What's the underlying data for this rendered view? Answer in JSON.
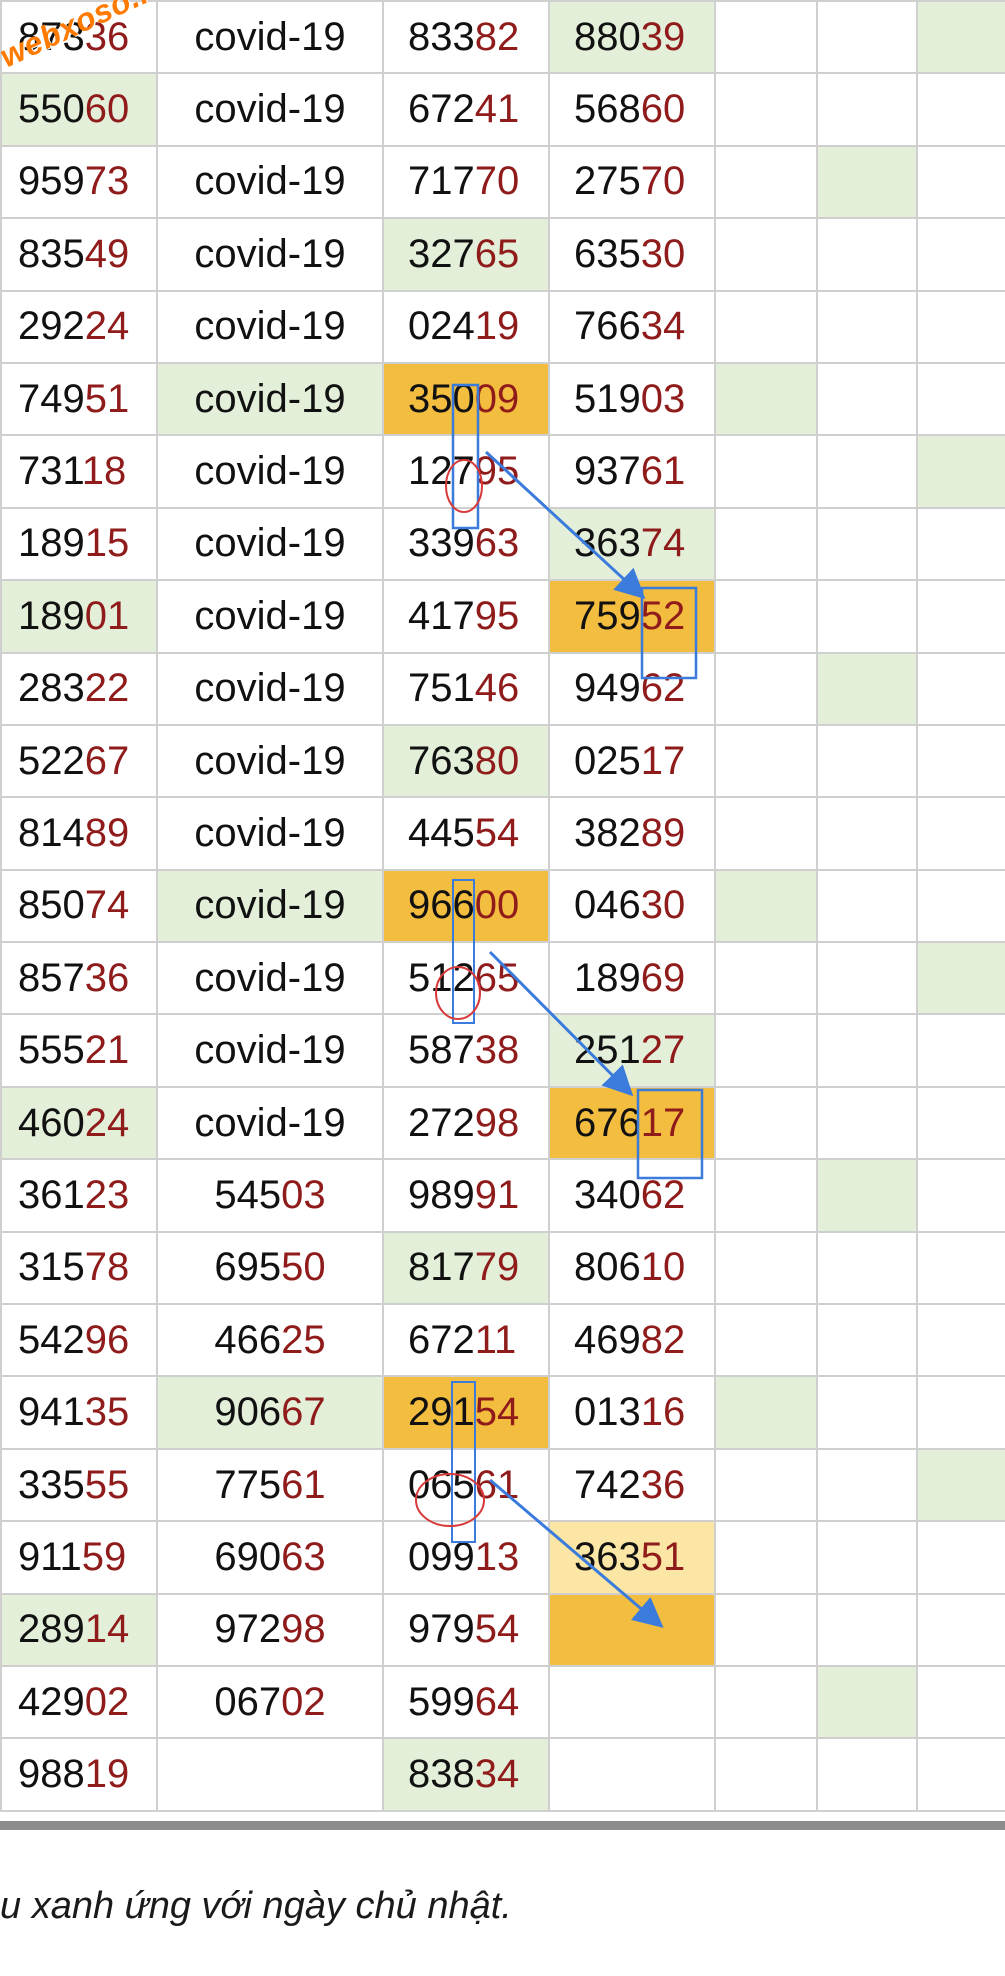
{
  "watermark": "webxoso.net",
  "note": "u xanh ứng với ngày chủ nhật.",
  "colors": {
    "suffix": "#8f1b1b",
    "green_cell": "#e3efd9",
    "orange_cell": "#f3bd3f",
    "light_orange_cell": "#fbe6a6",
    "annotation_blue": "#3b7bdc",
    "annotation_red": "#d83a3a"
  },
  "rows": [
    [
      {
        "pre": "873",
        "suf": "36"
      },
      {
        "text": "covid-19"
      },
      {
        "pre": "833",
        "suf": "82"
      },
      {
        "pre": "880",
        "suf": "39",
        "bg": "g"
      },
      {},
      {},
      {
        "bg": "g"
      }
    ],
    [
      {
        "pre": "550",
        "suf": "60",
        "bg": "g"
      },
      {
        "text": "covid-19"
      },
      {
        "pre": "672",
        "suf": "41"
      },
      {
        "pre": "568",
        "suf": "60"
      },
      {},
      {},
      {}
    ],
    [
      {
        "pre": "959",
        "suf": "73"
      },
      {
        "text": "covid-19"
      },
      {
        "pre": "717",
        "suf": "70"
      },
      {
        "pre": "275",
        "suf": "70"
      },
      {},
      {
        "bg": "g"
      },
      {}
    ],
    [
      {
        "pre": "835",
        "suf": "49"
      },
      {
        "text": "covid-19"
      },
      {
        "pre": "327",
        "suf": "65",
        "bg": "g"
      },
      {
        "pre": "635",
        "suf": "30"
      },
      {},
      {},
      {}
    ],
    [
      {
        "pre": "292",
        "suf": "24"
      },
      {
        "text": "covid-19"
      },
      {
        "pre": "024",
        "suf": "19"
      },
      {
        "pre": "766",
        "suf": "34"
      },
      {},
      {},
      {}
    ],
    [
      {
        "pre": "749",
        "suf": "51"
      },
      {
        "text": "covid-19",
        "bg": "g"
      },
      {
        "pre": "350",
        "suf": "09",
        "bg": "o"
      },
      {
        "pre": "519",
        "suf": "03"
      },
      {
        "bg": "g"
      },
      {},
      {}
    ],
    [
      {
        "pre": "731",
        "suf": "18"
      },
      {
        "text": "covid-19"
      },
      {
        "pre": "127",
        "suf": "95"
      },
      {
        "pre": "937",
        "suf": "61"
      },
      {},
      {},
      {
        "bg": "g"
      }
    ],
    [
      {
        "pre": "189",
        "suf": "15"
      },
      {
        "text": "covid-19"
      },
      {
        "pre": "339",
        "suf": "63"
      },
      {
        "pre": "363",
        "suf": "74",
        "bg": "g"
      },
      {},
      {},
      {}
    ],
    [
      {
        "pre": "189",
        "suf": "01",
        "bg": "g"
      },
      {
        "text": "covid-19"
      },
      {
        "pre": "417",
        "suf": "95"
      },
      {
        "pre": "759",
        "suf": "52",
        "bg": "o"
      },
      {},
      {},
      {}
    ],
    [
      {
        "pre": "283",
        "suf": "22"
      },
      {
        "text": "covid-19"
      },
      {
        "pre": "751",
        "suf": "46"
      },
      {
        "pre": "949",
        "suf": "62"
      },
      {},
      {
        "bg": "g"
      },
      {}
    ],
    [
      {
        "pre": "522",
        "suf": "67"
      },
      {
        "text": "covid-19"
      },
      {
        "pre": "763",
        "suf": "80",
        "bg": "g"
      },
      {
        "pre": "025",
        "suf": "17"
      },
      {},
      {},
      {}
    ],
    [
      {
        "pre": "814",
        "suf": "89"
      },
      {
        "text": "covid-19"
      },
      {
        "pre": "445",
        "suf": "54"
      },
      {
        "pre": "382",
        "suf": "89"
      },
      {},
      {},
      {}
    ],
    [
      {
        "pre": "850",
        "suf": "74"
      },
      {
        "text": "covid-19",
        "bg": "g"
      },
      {
        "pre": "966",
        "suf": "00",
        "bg": "o"
      },
      {
        "pre": "046",
        "suf": "30"
      },
      {
        "bg": "g"
      },
      {},
      {}
    ],
    [
      {
        "pre": "857",
        "suf": "36"
      },
      {
        "text": "covid-19"
      },
      {
        "pre": "512",
        "suf": "65"
      },
      {
        "pre": "189",
        "suf": "69"
      },
      {},
      {},
      {
        "bg": "g"
      }
    ],
    [
      {
        "pre": "555",
        "suf": "21"
      },
      {
        "text": "covid-19"
      },
      {
        "pre": "587",
        "suf": "38"
      },
      {
        "pre": "251",
        "suf": "27",
        "bg": "g"
      },
      {},
      {},
      {}
    ],
    [
      {
        "pre": "460",
        "suf": "24",
        "bg": "g"
      },
      {
        "text": "covid-19"
      },
      {
        "pre": "272",
        "suf": "98"
      },
      {
        "pre": "676",
        "suf": "17",
        "bg": "o"
      },
      {},
      {},
      {}
    ],
    [
      {
        "pre": "361",
        "suf": "23"
      },
      {
        "pre": "545",
        "suf": "03"
      },
      {
        "pre": "989",
        "suf": "91"
      },
      {
        "pre": "340",
        "suf": "62"
      },
      {},
      {
        "bg": "g"
      },
      {}
    ],
    [
      {
        "pre": "315",
        "suf": "78"
      },
      {
        "pre": "695",
        "suf": "50"
      },
      {
        "pre": "817",
        "suf": "79",
        "bg": "g"
      },
      {
        "pre": "806",
        "suf": "10"
      },
      {},
      {},
      {}
    ],
    [
      {
        "pre": "542",
        "suf": "96"
      },
      {
        "pre": "466",
        "suf": "25"
      },
      {
        "pre": "672",
        "suf": "11"
      },
      {
        "pre": "469",
        "suf": "82"
      },
      {},
      {},
      {}
    ],
    [
      {
        "pre": "941",
        "suf": "35"
      },
      {
        "pre": "906",
        "suf": "67",
        "bg": "g"
      },
      {
        "pre": "291",
        "suf": "54",
        "bg": "o"
      },
      {
        "pre": "013",
        "suf": "16"
      },
      {
        "bg": "g"
      },
      {},
      {}
    ],
    [
      {
        "pre": "335",
        "suf": "55"
      },
      {
        "pre": "775",
        "suf": "61"
      },
      {
        "pre": "065",
        "suf": "61"
      },
      {
        "pre": "742",
        "suf": "36"
      },
      {},
      {},
      {
        "bg": "g"
      }
    ],
    [
      {
        "pre": "911",
        "suf": "59"
      },
      {
        "pre": "690",
        "suf": "63"
      },
      {
        "pre": "099",
        "suf": "13"
      },
      {
        "pre": "363",
        "suf": "51",
        "bg": "y"
      },
      {},
      {},
      {}
    ],
    [
      {
        "pre": "289",
        "suf": "14",
        "bg": "g"
      },
      {
        "pre": "972",
        "suf": "98"
      },
      {
        "pre": "979",
        "suf": "54"
      },
      {
        "bg": "o"
      },
      {},
      {},
      {}
    ],
    [
      {
        "pre": "429",
        "suf": "02"
      },
      {
        "pre": "067",
        "suf": "02"
      },
      {
        "pre": "599",
        "suf": "64"
      },
      {},
      {},
      {
        "bg": "g"
      },
      {}
    ],
    [
      {
        "pre": "988",
        "suf": "19"
      },
      {},
      {
        "pre": "838",
        "suf": "34",
        "bg": "g"
      },
      {},
      {},
      {},
      {}
    ]
  ]
}
